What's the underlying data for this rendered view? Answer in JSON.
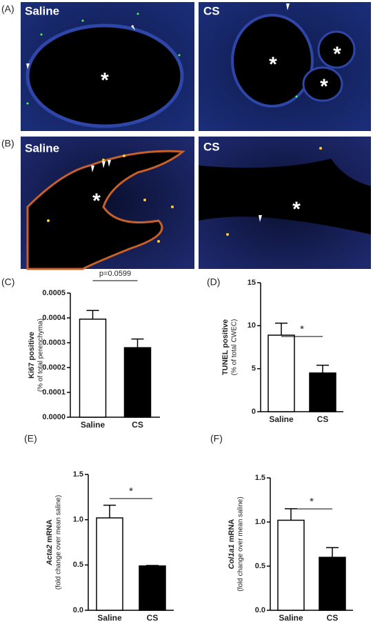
{
  "images": [
    {
      "panel": "(A)",
      "left": "Saline",
      "right": "CS"
    },
    {
      "panel": "(B)",
      "left": "Saline",
      "right": "CS"
    }
  ],
  "lumen_marker": "*",
  "chart_data": [
    {
      "type": "bar",
      "panel": "(C)",
      "ylabel": "Ki67 positive",
      "ylabel_sub": "(% of total perenchyma)",
      "categories": [
        "Saline",
        "CS"
      ],
      "values": [
        0.000395,
        0.00028
      ],
      "errors": [
        3.5e-05,
        3.5e-05
      ],
      "colors": [
        "#ffffff",
        "#000000"
      ],
      "annotation": "p=0.0599",
      "ylim": [
        0,
        0.0005
      ],
      "yticks": [
        {
          "value": 0,
          "label": "0.0000"
        },
        {
          "value": 0.0001,
          "label": "0.0001"
        },
        {
          "value": 0.0002,
          "label": "0.0002"
        },
        {
          "value": 0.0003,
          "label": "0.0003"
        },
        {
          "value": 0.0004,
          "label": "0.0004"
        },
        {
          "value": 0.0005,
          "label": "0.0005"
        }
      ]
    },
    {
      "type": "bar",
      "panel": "(D)",
      "ylabel": "TUNEL positive",
      "ylabel_sub": "(% of total CWEC)",
      "categories": [
        "Saline",
        "CS"
      ],
      "values": [
        8.9,
        4.5
      ],
      "errors": [
        1.4,
        0.9
      ],
      "colors": [
        "#ffffff",
        "#000000"
      ],
      "annotation": "*",
      "ylim": [
        0,
        15
      ],
      "yticks": [
        0,
        5,
        10,
        15
      ]
    },
    {
      "type": "bar",
      "panel": "(E)",
      "ylabel_italic": "Acta2",
      "ylabel": "mRNA",
      "ylabel_sub": "(fold change over mean saline)",
      "categories": [
        "Saline",
        "CS"
      ],
      "values": [
        1.02,
        0.49
      ],
      "errors": [
        0.14,
        0.005
      ],
      "colors": [
        "#ffffff",
        "#000000"
      ],
      "annotation": "*",
      "ylim": [
        0,
        1.5
      ],
      "yticks": [
        {
          "value": 0,
          "label": "0.0"
        },
        0.5,
        {
          "value": 1,
          "label": "1.0"
        },
        1.5
      ]
    },
    {
      "type": "bar",
      "panel": "(F)",
      "ylabel_italic": "Col1a1",
      "ylabel": "mRNA",
      "ylabel_sub": "(fold change over mean saline)",
      "categories": [
        "Saline",
        "CS"
      ],
      "values": [
        1.02,
        0.6
      ],
      "errors": [
        0.13,
        0.11
      ],
      "colors": [
        "#ffffff",
        "#000000"
      ],
      "annotation": "*",
      "ylim": [
        0,
        1.5
      ],
      "yticks": [
        {
          "value": 0,
          "label": "0.0"
        },
        0.5,
        {
          "value": 1,
          "label": "1.0"
        },
        1.5
      ]
    }
  ]
}
